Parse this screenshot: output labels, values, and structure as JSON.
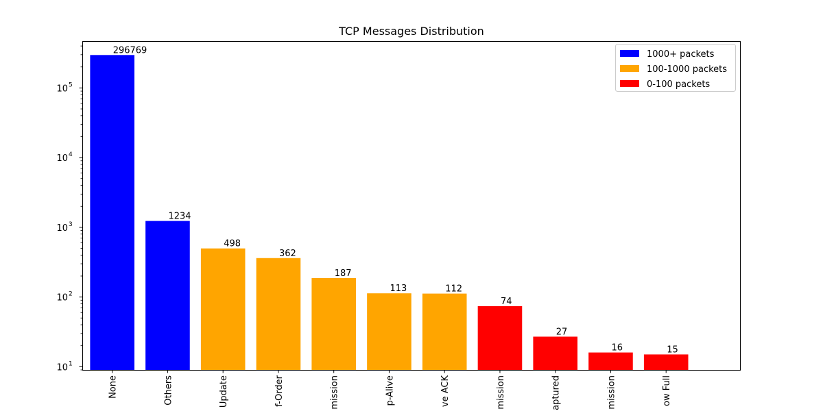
{
  "chart_data": {
    "type": "bar",
    "title": "TCP Messages Distribution",
    "xlabel": "",
    "ylabel": "",
    "y_scale": "log",
    "ylim": [
      9,
      470000
    ],
    "grid": false,
    "categories": [
      "None",
      "Others",
      "Update",
      "f-Order",
      "mission",
      "p-Alive",
      "ve ACK",
      "mission",
      "aptured",
      "mission",
      "ow Full"
    ],
    "values": [
      296769,
      1234,
      498,
      362,
      187,
      113,
      112,
      74,
      27,
      16,
      15
    ],
    "value_labels": [
      "296769",
      "1234",
      "498",
      "362",
      "187",
      "113",
      "112",
      "74",
      "27",
      "16",
      "15"
    ],
    "bar_groups": [
      0,
      0,
      1,
      1,
      1,
      1,
      1,
      2,
      2,
      2,
      2
    ],
    "y_ticks": [
      {
        "value": 10,
        "base": "10",
        "exp": "1"
      },
      {
        "value": 100,
        "base": "10",
        "exp": "2"
      },
      {
        "value": 1000,
        "base": "10",
        "exp": "3"
      },
      {
        "value": 10000,
        "base": "10",
        "exp": "4"
      },
      {
        "value": 100000,
        "base": "10",
        "exp": "5"
      }
    ],
    "legend": {
      "position": "top-right",
      "entries": [
        {
          "label": "1000+ packets",
          "color": "#0000ff"
        },
        {
          "label": "100-1000 packets",
          "color": "#ffa500"
        },
        {
          "label": "0-100 packets",
          "color": "#ff0000"
        }
      ]
    }
  }
}
